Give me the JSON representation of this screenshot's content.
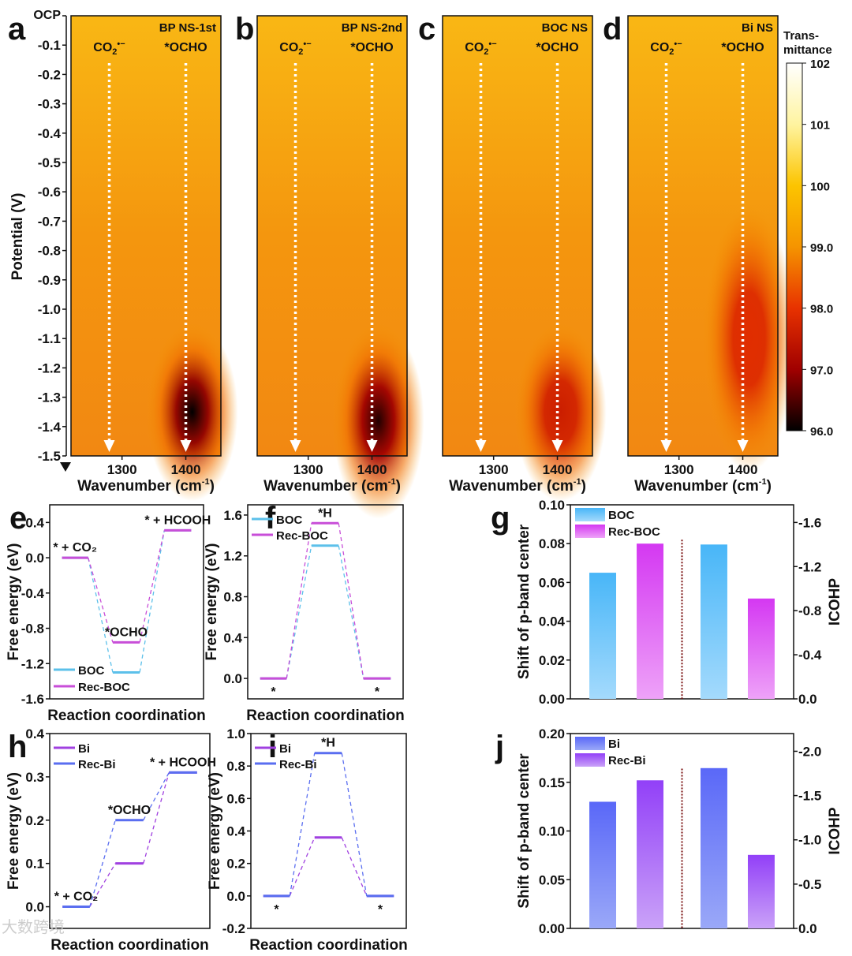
{
  "watermark": "大数跨境",
  "panel_letters": [
    "a",
    "b",
    "c",
    "d",
    "e",
    "f",
    "g",
    "h",
    "i",
    "j"
  ],
  "colorbar": {
    "label_line1": "Trans-",
    "label_line2": "mittance",
    "range": [
      96,
      102
    ],
    "ticks": [
      "102",
      "101",
      "100",
      "99.0",
      "98.0",
      "97.0",
      "96.0"
    ],
    "tick_values": [
      102,
      101,
      100,
      99,
      98,
      97,
      96
    ]
  },
  "heatmap_axis": {
    "ylabel": "Potential (V)",
    "yticklabels": [
      "OCP",
      "-0.1",
      "-0.2",
      "-0.3",
      "-0.4",
      "-0.5",
      "-0.6",
      "-0.7",
      "-0.8",
      "-0.9",
      "-1.0",
      "-1.1",
      "-1.2",
      "-1.3",
      "-1.4",
      "-1.5"
    ],
    "yticks": [
      0,
      -0.1,
      -0.2,
      -0.3,
      -0.4,
      -0.5,
      -0.6,
      -0.7,
      -0.8,
      -0.9,
      -1.0,
      -1.1,
      -1.2,
      -1.3,
      -1.4,
      -1.5
    ],
    "xlabel_main": "Wavenumber (cm",
    "xlabel_sup": "-1",
    "xlabel_end": ")",
    "xticks": [
      1300,
      1400
    ],
    "xticklabels": [
      "1300",
      "1400"
    ],
    "xlim": [
      1220,
      1455
    ],
    "ylim": [
      0,
      -1.5
    ],
    "annotations": [
      {
        "base": "CO",
        "sub": "2",
        "sup": "•−",
        "wavenumber": 1280
      },
      {
        "base": "*OCHO",
        "sub": "",
        "sup": "",
        "wavenumber": 1400
      }
    ]
  },
  "chart_data": [
    {
      "type": "heatmap",
      "panel": "a",
      "title": "BP NS-1st",
      "min_transmittance": 96.0,
      "min_at": {
        "wavenumber": 1410,
        "potential": -1.35
      },
      "feature_extent_V": [
        -1.1,
        -1.5
      ]
    },
    {
      "type": "heatmap",
      "panel": "b",
      "title": "BP NS-2nd",
      "min_transmittance": 96.2,
      "min_at": {
        "wavenumber": 1410,
        "potential": -1.38
      },
      "feature_extent_V": [
        -1.1,
        -1.5
      ]
    },
    {
      "type": "heatmap",
      "panel": "c",
      "title": "BOC NS",
      "min_transmittance": 97.6,
      "min_at": {
        "wavenumber": 1405,
        "potential": -1.35
      },
      "feature_extent_V": [
        -1.1,
        -1.5
      ]
    },
    {
      "type": "heatmap",
      "panel": "d",
      "title": "Bi NS",
      "min_transmittance": 97.9,
      "min_at": {
        "wavenumber": 1410,
        "potential": -1.1
      },
      "feature_extent_V": [
        -0.75,
        -1.5
      ]
    },
    {
      "type": "line",
      "panel": "e",
      "xlabel": "Reaction coordination",
      "ylabel": "Free energy (eV)",
      "ylim": [
        -1.6,
        0.6
      ],
      "yticks": [
        -1.6,
        -1.2,
        -0.8,
        -0.4,
        0,
        0.4
      ],
      "yticklabels": [
        "-1.6",
        "-1.2",
        "-0.8",
        "-0.4",
        "0.0",
        "0.4"
      ],
      "series": [
        {
          "name": "BOC",
          "color": "#5cc0ea",
          "values": [
            0,
            -1.3,
            0.31
          ]
        },
        {
          "name": "Rec-BOC",
          "color": "#c84ed8",
          "values": [
            0,
            -0.96,
            0.31
          ]
        }
      ],
      "step_labels": [
        {
          "text": "* + CO₂",
          "step": 0,
          "position": "above"
        },
        {
          "text": "*OCHO",
          "step": 1,
          "position": "above"
        },
        {
          "text": "* + HCOOH",
          "step": 2,
          "position": "above"
        }
      ],
      "legend": "bottom-left"
    },
    {
      "type": "line",
      "panel": "f",
      "xlabel": "Reaction coordination",
      "ylabel": "Free energy (eV)",
      "ylim": [
        -0.2,
        1.7
      ],
      "yticks": [
        0,
        0.4,
        0.8,
        1.2,
        1.6
      ],
      "yticklabels": [
        "0.0",
        "0.4",
        "0.8",
        "1.2",
        "1.6"
      ],
      "series": [
        {
          "name": "BOC",
          "color": "#5cc0ea",
          "values": [
            0,
            1.3,
            0
          ]
        },
        {
          "name": "Rec-BOC",
          "color": "#c84ed8",
          "values": [
            0,
            1.52,
            0
          ]
        }
      ],
      "step_labels": [
        {
          "text": "*",
          "step": 0,
          "position": "below"
        },
        {
          "text": "*H",
          "step": 1,
          "position": "above"
        },
        {
          "text": "*",
          "step": 2,
          "position": "below"
        }
      ],
      "legend": "top-left"
    },
    {
      "type": "bar",
      "panel": "g",
      "ylabel": "Shift of p-band center",
      "y2label": "ICOHP",
      "ylim": [
        0,
        0.1
      ],
      "yticks": [
        0,
        0.02,
        0.04,
        0.06,
        0.08,
        0.1
      ],
      "yticklabels": [
        "0.00",
        "0.02",
        "0.04",
        "0.06",
        "0.08",
        "0.10"
      ],
      "y2lim": [
        0,
        -1.76
      ],
      "y2ticks": [
        0,
        -0.4,
        -0.8,
        -1.2,
        -1.6
      ],
      "y2ticklabels": [
        "0.0",
        "-0.4",
        "-0.8",
        "-1.2",
        "-1.6"
      ],
      "categories": [
        "BOC",
        "Rec-BOC"
      ],
      "p_band_shift": [
        0.065,
        0.08
      ],
      "icohp": [
        -1.4,
        -0.91
      ],
      "colors": [
        {
          "top": "#48b6f8",
          "bottom": "#a4dafc"
        },
        {
          "top": "#d438f2",
          "bottom": "#eea2f8"
        }
      ],
      "legend": "top-left"
    },
    {
      "type": "line",
      "panel": "h",
      "xlabel": "Reaction coordination",
      "ylabel": "Free energy (eV)",
      "ylim": [
        -0.05,
        0.4
      ],
      "yticks": [
        0,
        0.1,
        0.2,
        0.3,
        0.4
      ],
      "yticklabels": [
        "0.0",
        "0.1",
        "0.2",
        "0.3",
        "0.4"
      ],
      "series": [
        {
          "name": "Bi",
          "color": "#a040e0",
          "values": [
            0,
            0.1,
            0.31
          ]
        },
        {
          "name": "Rec-Bi",
          "color": "#5a6ef0",
          "values": [
            0,
            0.2,
            0.31
          ]
        }
      ],
      "step_labels": [
        {
          "text": "* + CO₂",
          "step": 0,
          "position": "above"
        },
        {
          "text": "*OCHO",
          "step": 1,
          "position": "above"
        },
        {
          "text": "* + HCOOH",
          "step": 2,
          "position": "above"
        }
      ],
      "legend": "top-left"
    },
    {
      "type": "line",
      "panel": "i",
      "xlabel": "Reaction coordination",
      "ylabel": "Free energy (eV)",
      "ylim": [
        -0.2,
        1.0
      ],
      "yticks": [
        -0.2,
        0,
        0.2,
        0.4,
        0.6,
        0.8,
        1.0
      ],
      "yticklabels": [
        "-0.2",
        "0.0",
        "0.2",
        "0.4",
        "0.6",
        "0.8",
        "1.0"
      ],
      "series": [
        {
          "name": "Bi",
          "color": "#a040e0",
          "values": [
            0,
            0.36,
            0
          ]
        },
        {
          "name": "Rec-Bi",
          "color": "#5a6ef0",
          "values": [
            0,
            0.88,
            0
          ]
        }
      ],
      "step_labels": [
        {
          "text": "*",
          "step": 0,
          "position": "below"
        },
        {
          "text": "*H",
          "step": 1,
          "position": "above"
        },
        {
          "text": "*",
          "step": 2,
          "position": "below"
        }
      ],
      "legend": "top-left"
    },
    {
      "type": "bar",
      "panel": "j",
      "ylabel": "Shift of p-band center",
      "y2label": "ICOHP",
      "ylim": [
        0,
        0.2
      ],
      "yticks": [
        0,
        0.05,
        0.1,
        0.15,
        0.2
      ],
      "yticklabels": [
        "0.00",
        "0.05",
        "0.10",
        "0.15",
        "0.20"
      ],
      "y2lim": [
        0,
        -2.2
      ],
      "y2ticks": [
        0,
        -0.5,
        -1.0,
        -1.5,
        -2.0
      ],
      "y2ticklabels": [
        "0.0",
        "-0.5",
        "-1.0",
        "-1.5",
        "-2.0"
      ],
      "categories": [
        "Bi",
        "Rec-Bi"
      ],
      "p_band_shift": [
        0.13,
        0.152
      ],
      "icohp": [
        -1.81,
        -0.83
      ],
      "colors": [
        {
          "top": "#5a68f8",
          "bottom": "#9aa8f8"
        },
        {
          "top": "#9240f8",
          "bottom": "#caa2f8"
        }
      ],
      "legend": "top-left"
    }
  ]
}
